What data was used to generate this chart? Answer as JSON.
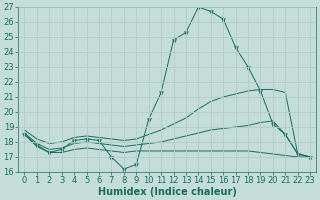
{
  "xlabel": "Humidex (Indice chaleur)",
  "xlim": [
    -0.5,
    23.5
  ],
  "ylim": [
    16,
    27
  ],
  "yticks": [
    16,
    17,
    18,
    19,
    20,
    21,
    22,
    23,
    24,
    25,
    26,
    27
  ],
  "xticks": [
    0,
    1,
    2,
    3,
    4,
    5,
    6,
    7,
    8,
    9,
    10,
    11,
    12,
    13,
    14,
    15,
    16,
    17,
    18,
    19,
    20,
    21,
    22,
    23
  ],
  "bg_color": "#c5ddd9",
  "line_color": "#1a6b5e",
  "lines": [
    {
      "x": [
        0,
        1,
        2,
        3,
        4,
        5,
        6,
        7,
        8,
        9,
        10,
        11,
        12,
        13,
        14,
        15,
        16,
        17,
        18,
        19,
        20,
        21,
        22,
        23
      ],
      "y": [
        18.5,
        17.8,
        17.3,
        17.5,
        18.1,
        18.2,
        18.1,
        17.0,
        16.2,
        16.5,
        19.5,
        21.3,
        24.8,
        25.3,
        27.0,
        26.7,
        26.2,
        24.3,
        23.0,
        21.4,
        19.2,
        18.5,
        17.2,
        17.0
      ],
      "marker": "*",
      "markersize": 3.5
    },
    {
      "x": [
        0,
        1,
        2,
        3,
        4,
        5,
        6,
        7,
        8,
        9,
        10,
        11,
        12,
        13,
        14,
        15,
        16,
        17,
        18,
        19,
        20,
        21,
        22,
        23
      ],
      "y": [
        18.8,
        18.2,
        17.9,
        18.0,
        18.3,
        18.4,
        18.3,
        18.2,
        18.1,
        18.2,
        18.5,
        18.8,
        19.2,
        19.6,
        20.2,
        20.7,
        21.0,
        21.2,
        21.4,
        21.5,
        21.5,
        21.3,
        17.2,
        17.0
      ],
      "marker": null,
      "markersize": 0
    },
    {
      "x": [
        0,
        1,
        2,
        3,
        4,
        5,
        6,
        7,
        8,
        9,
        10,
        11,
        12,
        13,
        14,
        15,
        16,
        17,
        18,
        19,
        20,
        21,
        22,
        23
      ],
      "y": [
        18.6,
        17.9,
        17.5,
        17.6,
        17.9,
        18.0,
        17.9,
        17.8,
        17.7,
        17.8,
        17.9,
        18.0,
        18.2,
        18.4,
        18.6,
        18.8,
        18.9,
        19.0,
        19.1,
        19.3,
        19.4,
        18.5,
        17.2,
        17.0
      ],
      "marker": null,
      "markersize": 0
    },
    {
      "x": [
        0,
        1,
        2,
        3,
        4,
        5,
        6,
        7,
        8,
        9,
        10,
        11,
        12,
        13,
        14,
        15,
        16,
        17,
        18,
        19,
        20,
        21,
        22,
        23
      ],
      "y": [
        18.5,
        17.7,
        17.3,
        17.3,
        17.5,
        17.6,
        17.5,
        17.4,
        17.3,
        17.4,
        17.4,
        17.4,
        17.4,
        17.4,
        17.4,
        17.4,
        17.4,
        17.4,
        17.4,
        17.3,
        17.2,
        17.1,
        17.0,
        17.0
      ],
      "marker": null,
      "markersize": 0
    }
  ],
  "grid_color": "#b0ccc8",
  "tick_color": "#1a6b5e",
  "label_color": "#1a6b5e",
  "font_size": 6
}
